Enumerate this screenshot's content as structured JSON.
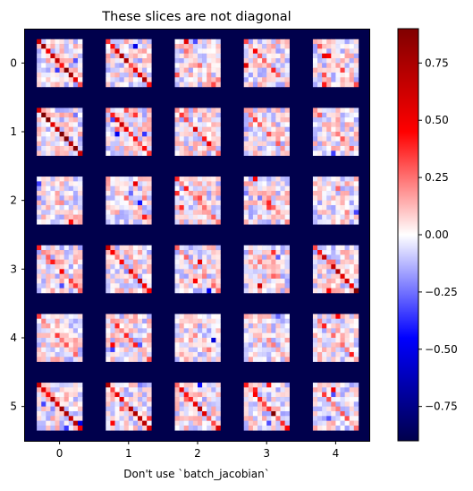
{
  "chart_data": {
    "type": "heatmap",
    "title": "These slices are not diagonal",
    "xlabel": "Don't use `batch_jacobian`",
    "ylabel": "",
    "grid_rows": 6,
    "grid_cols": 5,
    "block_size": 10,
    "x_ticks": [
      "0",
      "1",
      "2",
      "3",
      "4"
    ],
    "y_ticks": [
      "0",
      "1",
      "2",
      "3",
      "4",
      "5"
    ],
    "colormap": "seismic",
    "colorbar": {
      "vmin": -0.9,
      "vmax": 0.9,
      "ticks": [
        -0.75,
        -0.5,
        -0.25,
        0.0,
        0.25,
        0.5,
        0.75
      ],
      "tick_labels": [
        "−0.75",
        "−0.50",
        "−0.25",
        "0.00",
        "0.25",
        "0.50",
        "0.75"
      ]
    },
    "cell_values_note": "",
    "cells_seed": 7,
    "background_value": -0.9,
    "diagonal_strength": [
      [
        0.7,
        0.55,
        0.15,
        0.2,
        0.2
      ],
      [
        0.8,
        0.45,
        0.4,
        0.2,
        0.15
      ],
      [
        0.1,
        0.1,
        0.25,
        0.1,
        0.1
      ],
      [
        0.35,
        0.45,
        0.2,
        0.15,
        0.6
      ],
      [
        0.2,
        0.4,
        0.1,
        0.2,
        0.25
      ],
      [
        0.7,
        0.55,
        0.5,
        0.45,
        0.2
      ]
    ]
  }
}
